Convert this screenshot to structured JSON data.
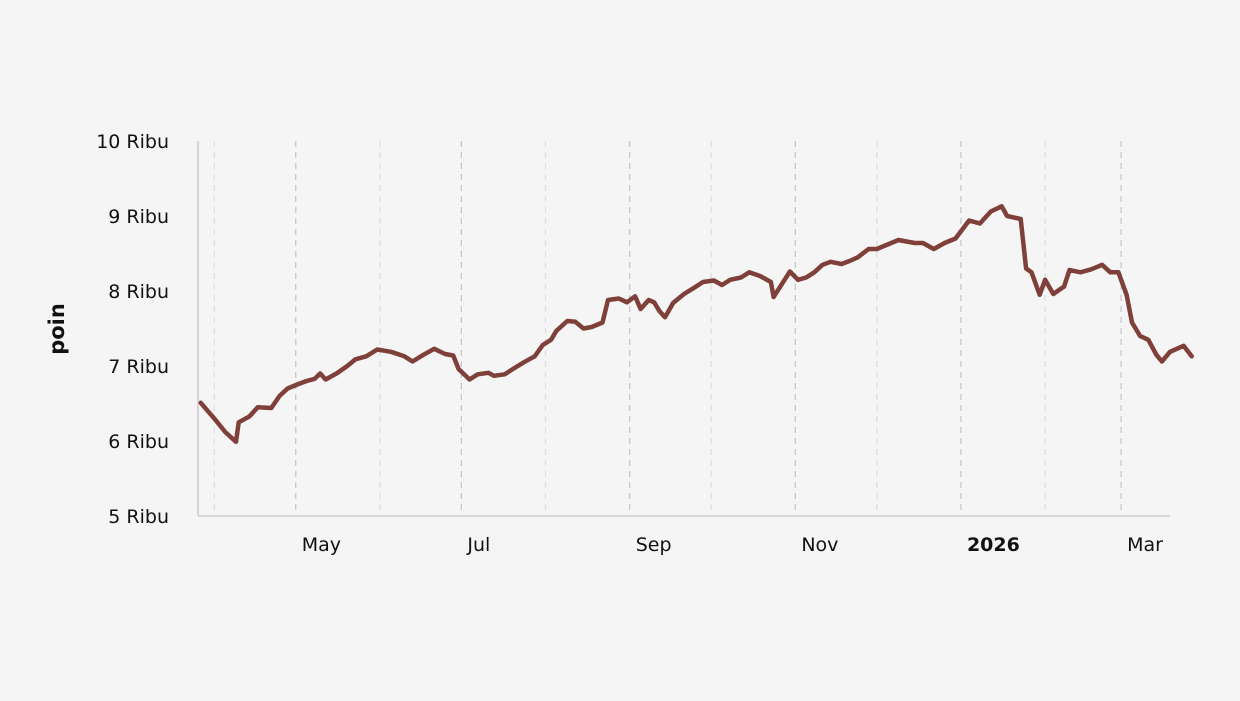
{
  "chart_data": {
    "type": "line",
    "title": "",
    "xlabel": "",
    "ylabel": "poin",
    "ylim": [
      5000,
      10000
    ],
    "xlim": [
      "2025-03-26",
      "2026-03-19"
    ],
    "y_ticks": [
      {
        "value": 5000,
        "label": "5 Ribu"
      },
      {
        "value": 6000,
        "label": "6 Ribu"
      },
      {
        "value": 7000,
        "label": "7 Ribu"
      },
      {
        "value": 8000,
        "label": "8 Ribu"
      },
      {
        "value": 9000,
        "label": "9 Ribu"
      },
      {
        "value": 10000,
        "label": "10 Ribu"
      }
    ],
    "x_ticks": [
      {
        "date": "2025-05-01",
        "label": "May",
        "bold": false
      },
      {
        "date": "2025-07-01",
        "label": "Jul",
        "bold": false
      },
      {
        "date": "2025-09-01",
        "label": "Sep",
        "bold": false
      },
      {
        "date": "2025-11-01",
        "label": "Nov",
        "bold": false
      },
      {
        "date": "2026-01-01",
        "label": "2026",
        "bold": true
      },
      {
        "date": "2026-03-01",
        "label": "Mar",
        "bold": false
      }
    ],
    "minor_grid_dates": [
      "2025-04-01",
      "2025-06-01",
      "2025-08-01",
      "2025-10-01",
      "2025-12-01",
      "2026-02-01"
    ],
    "grid": true,
    "series": [
      {
        "color": "#7e4038",
        "points": [
          [
            "2025-03-27",
            6510
          ],
          [
            "2025-04-01",
            6300
          ],
          [
            "2025-04-05",
            6120
          ],
          [
            "2025-04-09",
            5990
          ],
          [
            "2025-04-10",
            6250
          ],
          [
            "2025-04-14",
            6330
          ],
          [
            "2025-04-17",
            6450
          ],
          [
            "2025-04-22",
            6440
          ],
          [
            "2025-04-25",
            6600
          ],
          [
            "2025-04-28",
            6700
          ],
          [
            "2025-05-02",
            6760
          ],
          [
            "2025-05-05",
            6800
          ],
          [
            "2025-05-08",
            6830
          ],
          [
            "2025-05-10",
            6900
          ],
          [
            "2025-05-12",
            6820
          ],
          [
            "2025-05-16",
            6900
          ],
          [
            "2025-05-20",
            7000
          ],
          [
            "2025-05-23",
            7090
          ],
          [
            "2025-05-27",
            7130
          ],
          [
            "2025-05-31",
            7220
          ],
          [
            "2025-06-05",
            7190
          ],
          [
            "2025-06-10",
            7130
          ],
          [
            "2025-06-13",
            7060
          ],
          [
            "2025-06-17",
            7150
          ],
          [
            "2025-06-21",
            7230
          ],
          [
            "2025-06-25",
            7160
          ],
          [
            "2025-06-28",
            7140
          ],
          [
            "2025-06-30",
            6960
          ],
          [
            "2025-07-04",
            6820
          ],
          [
            "2025-07-07",
            6890
          ],
          [
            "2025-07-11",
            6910
          ],
          [
            "2025-07-13",
            6870
          ],
          [
            "2025-07-17",
            6890
          ],
          [
            "2025-07-20",
            6960
          ],
          [
            "2025-07-24",
            7050
          ],
          [
            "2025-07-28",
            7130
          ],
          [
            "2025-07-31",
            7280
          ],
          [
            "2025-08-03",
            7350
          ],
          [
            "2025-08-05",
            7470
          ],
          [
            "2025-08-09",
            7600
          ],
          [
            "2025-08-12",
            7590
          ],
          [
            "2025-08-15",
            7500
          ],
          [
            "2025-08-18",
            7520
          ],
          [
            "2025-08-22",
            7580
          ],
          [
            "2025-08-24",
            7880
          ],
          [
            "2025-08-28",
            7900
          ],
          [
            "2025-08-31",
            7850
          ],
          [
            "2025-09-03",
            7930
          ],
          [
            "2025-09-05",
            7760
          ],
          [
            "2025-09-08",
            7880
          ],
          [
            "2025-09-10",
            7850
          ],
          [
            "2025-09-12",
            7730
          ],
          [
            "2025-09-14",
            7650
          ],
          [
            "2025-09-17",
            7840
          ],
          [
            "2025-09-21",
            7960
          ],
          [
            "2025-09-25",
            8050
          ],
          [
            "2025-09-28",
            8120
          ],
          [
            "2025-10-02",
            8140
          ],
          [
            "2025-10-05",
            8080
          ],
          [
            "2025-10-08",
            8150
          ],
          [
            "2025-10-12",
            8180
          ],
          [
            "2025-10-15",
            8250
          ],
          [
            "2025-10-19",
            8200
          ],
          [
            "2025-10-23",
            8120
          ],
          [
            "2025-10-24",
            7920
          ],
          [
            "2025-10-27",
            8090
          ],
          [
            "2025-10-30",
            8260
          ],
          [
            "2025-11-02",
            8150
          ],
          [
            "2025-11-05",
            8180
          ],
          [
            "2025-11-08",
            8250
          ],
          [
            "2025-11-11",
            8350
          ],
          [
            "2025-11-14",
            8390
          ],
          [
            "2025-11-18",
            8360
          ],
          [
            "2025-11-21",
            8400
          ],
          [
            "2025-11-24",
            8450
          ],
          [
            "2025-11-28",
            8560
          ],
          [
            "2025-12-01",
            8560
          ],
          [
            "2025-12-05",
            8620
          ],
          [
            "2025-12-09",
            8680
          ],
          [
            "2025-12-12",
            8660
          ],
          [
            "2025-12-15",
            8640
          ],
          [
            "2025-12-18",
            8640
          ],
          [
            "2025-12-22",
            8560
          ],
          [
            "2025-12-26",
            8640
          ],
          [
            "2025-12-30",
            8700
          ],
          [
            "2026-01-04",
            8940
          ],
          [
            "2026-01-08",
            8900
          ],
          [
            "2026-01-12",
            9060
          ],
          [
            "2026-01-16",
            9130
          ],
          [
            "2026-01-18",
            9000
          ],
          [
            "2026-01-23",
            8960
          ],
          [
            "2026-01-25",
            8300
          ],
          [
            "2026-01-27",
            8250
          ],
          [
            "2026-01-30",
            7950
          ],
          [
            "2026-02-01",
            8150
          ],
          [
            "2026-02-04",
            7960
          ],
          [
            "2026-02-08",
            8060
          ],
          [
            "2026-02-10",
            8280
          ],
          [
            "2026-02-14",
            8250
          ],
          [
            "2026-02-18",
            8290
          ],
          [
            "2026-02-22",
            8350
          ],
          [
            "2026-02-25",
            8250
          ],
          [
            "2026-02-28",
            8250
          ],
          [
            "2026-03-03",
            7950
          ],
          [
            "2026-03-05",
            7580
          ],
          [
            "2026-03-08",
            7400
          ],
          [
            "2026-03-11",
            7350
          ],
          [
            "2026-03-14",
            7150
          ],
          [
            "2026-03-16",
            7060
          ],
          [
            "2026-03-19",
            7190
          ],
          [
            "2026-03-24",
            7270
          ],
          [
            "2026-03-27",
            7130
          ]
        ]
      }
    ]
  }
}
